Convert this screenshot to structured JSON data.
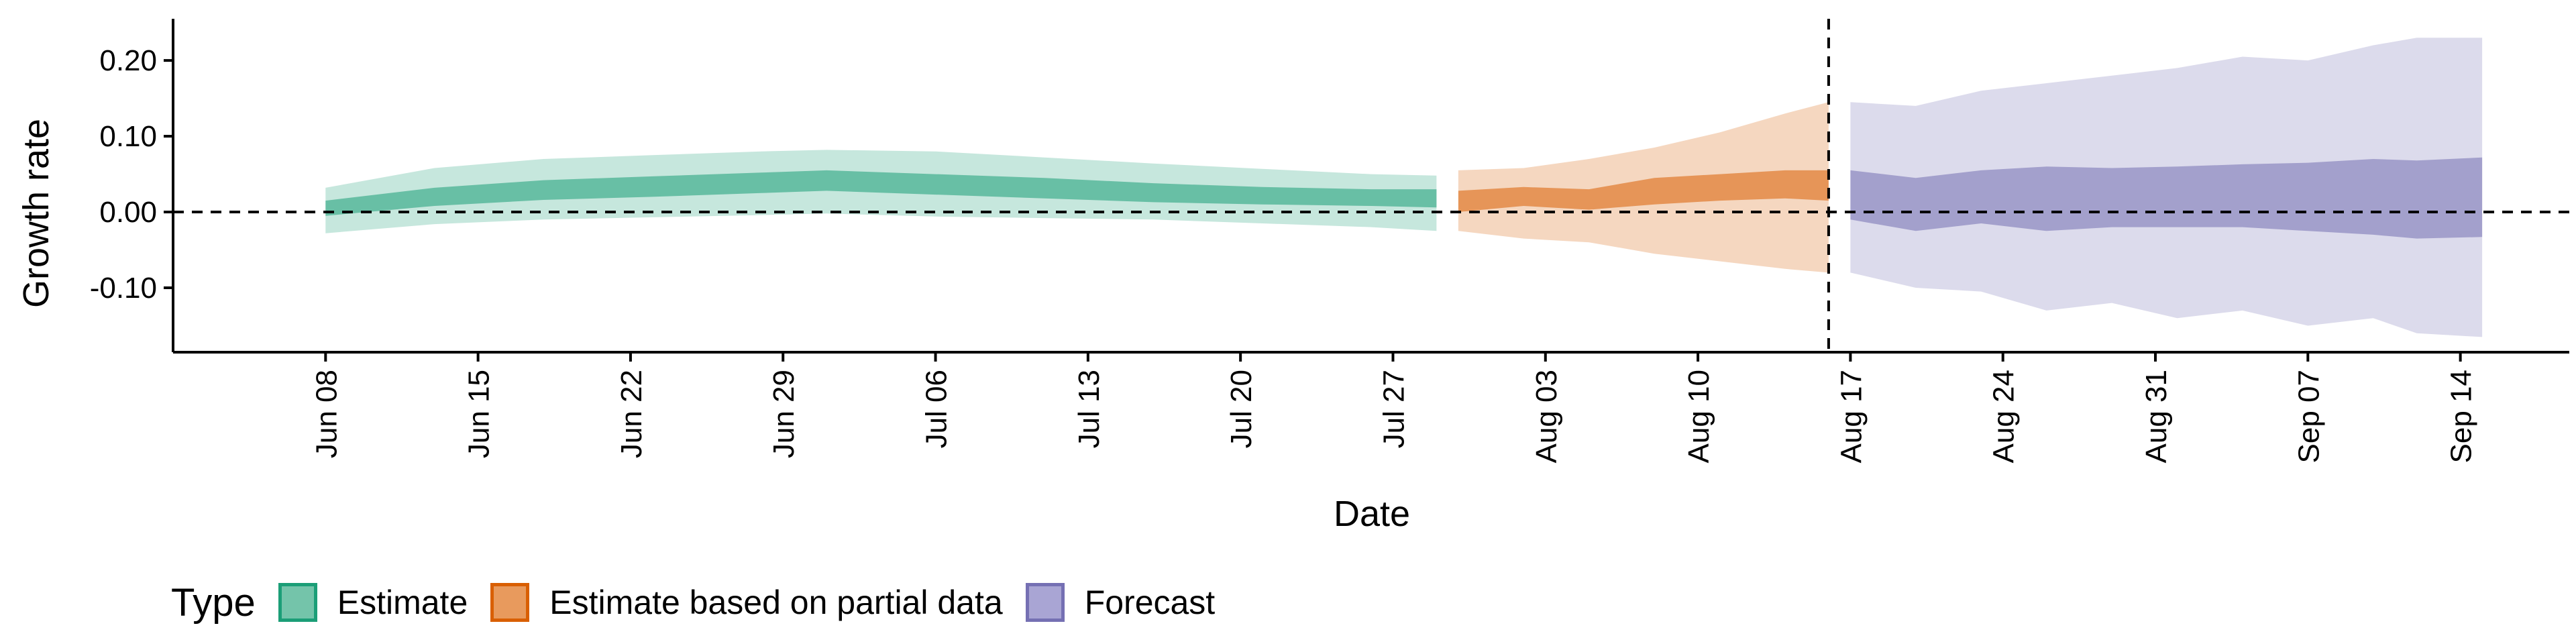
{
  "chart_data": {
    "type": "area",
    "xlabel": "Date",
    "ylabel": "Growth rate",
    "ylim": [
      -0.185,
      0.255
    ],
    "yticks": [
      0.2,
      0.1,
      0.0,
      -0.1
    ],
    "ytick_labels": [
      "0.20",
      "0.10",
      "0.00",
      "-0.10"
    ],
    "xlim": [
      "2020-06-01",
      "2020-09-19"
    ],
    "xticks": [
      "2020-06-08",
      "2020-06-15",
      "2020-06-22",
      "2020-06-29",
      "2020-07-06",
      "2020-07-13",
      "2020-07-20",
      "2020-07-27",
      "2020-08-03",
      "2020-08-10",
      "2020-08-17",
      "2020-08-24",
      "2020-08-31",
      "2020-09-07",
      "2020-09-14"
    ],
    "xtick_labels": [
      "Jun 08",
      "Jun 15",
      "Jun 22",
      "Jun 29",
      "Jul 06",
      "Jul 13",
      "Jul 20",
      "Jul 27",
      "Aug 03",
      "Aug 10",
      "Aug 17",
      "Aug 24",
      "Aug 31",
      "Sep 07",
      "Sep 14"
    ],
    "hline_y": 0,
    "vline_x": "2020-08-16",
    "grid": false,
    "legend_position": "bottom-left",
    "legend_title": "Type",
    "series": [
      {
        "name": "Estimate",
        "color": "#1b9e77",
        "x": [
          "2020-06-08",
          "2020-06-13",
          "2020-06-18",
          "2020-06-23",
          "2020-06-28",
          "2020-07-01",
          "2020-07-06",
          "2020-07-11",
          "2020-07-16",
          "2020-07-21",
          "2020-07-26",
          "2020-07-29"
        ],
        "outer_lower": [
          -0.028,
          -0.016,
          -0.01,
          -0.007,
          -0.004,
          -0.002,
          -0.006,
          -0.008,
          -0.01,
          -0.015,
          -0.02,
          -0.025
        ],
        "outer_upper": [
          0.032,
          0.058,
          0.07,
          0.075,
          0.08,
          0.082,
          0.08,
          0.072,
          0.064,
          0.057,
          0.05,
          0.048
        ],
        "inner_lower": [
          -0.005,
          0.008,
          0.016,
          0.02,
          0.025,
          0.028,
          0.023,
          0.018,
          0.013,
          0.01,
          0.008,
          0.006
        ],
        "inner_upper": [
          0.015,
          0.032,
          0.042,
          0.047,
          0.052,
          0.055,
          0.05,
          0.045,
          0.038,
          0.033,
          0.03,
          0.03
        ]
      },
      {
        "name": "Estimate based on partial data",
        "color": "#d95f02",
        "x": [
          "2020-07-30",
          "2020-08-02",
          "2020-08-05",
          "2020-08-08",
          "2020-08-11",
          "2020-08-14",
          "2020-08-16"
        ],
        "outer_lower": [
          -0.025,
          -0.035,
          -0.04,
          -0.055,
          -0.065,
          -0.075,
          -0.08
        ],
        "outer_upper": [
          0.055,
          0.058,
          0.07,
          0.085,
          0.105,
          0.13,
          0.145
        ],
        "inner_lower": [
          0.0,
          0.008,
          0.003,
          0.01,
          0.015,
          0.018,
          0.015
        ],
        "inner_upper": [
          0.028,
          0.033,
          0.03,
          0.045,
          0.05,
          0.055,
          0.055
        ]
      },
      {
        "name": "Forecast",
        "color": "#7570b3",
        "x": [
          "2020-08-17",
          "2020-08-20",
          "2020-08-23",
          "2020-08-26",
          "2020-08-29",
          "2020-09-01",
          "2020-09-04",
          "2020-09-07",
          "2020-09-10",
          "2020-09-12",
          "2020-09-15"
        ],
        "outer_lower": [
          -0.08,
          -0.1,
          -0.105,
          -0.13,
          -0.12,
          -0.14,
          -0.13,
          -0.15,
          -0.14,
          -0.16,
          -0.165
        ],
        "outer_upper": [
          0.145,
          0.14,
          0.16,
          0.17,
          0.18,
          0.19,
          0.205,
          0.2,
          0.22,
          0.23,
          0.23
        ],
        "inner_lower": [
          -0.01,
          -0.025,
          -0.015,
          -0.025,
          -0.02,
          -0.02,
          -0.02,
          -0.025,
          -0.03,
          -0.035,
          -0.033
        ],
        "inner_upper": [
          0.055,
          0.045,
          0.055,
          0.06,
          0.058,
          0.06,
          0.063,
          0.065,
          0.07,
          0.068,
          0.072
        ]
      }
    ]
  }
}
